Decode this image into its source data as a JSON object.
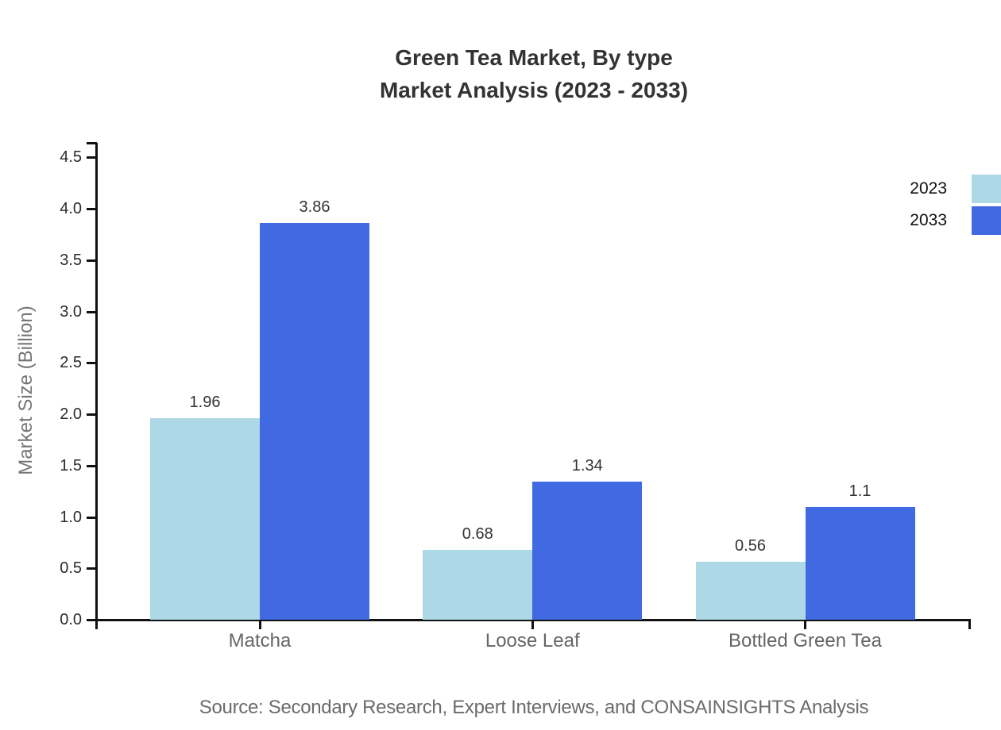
{
  "title": {
    "line1": "Green Tea Market, By type",
    "line2": "Market Analysis (2023 - 2033)"
  },
  "chart_data": {
    "type": "bar",
    "title": "Green Tea Market, By type — Market Analysis (2023 - 2033)",
    "categories": [
      "Matcha",
      "Loose Leaf",
      "Bottled Green Tea"
    ],
    "series": [
      {
        "name": "2023",
        "color": "#ADD8E6",
        "values": [
          1.96,
          0.68,
          0.56
        ]
      },
      {
        "name": "2033",
        "color": "#4169E1",
        "values": [
          3.86,
          1.34,
          1.1
        ]
      }
    ],
    "value_labels": [
      [
        "1.96",
        "0.68",
        "0.56"
      ],
      [
        "3.86",
        "1.34",
        "1.1"
      ]
    ],
    "xlabel": "",
    "ylabel": "Market Size (Billion)",
    "ylim": [
      0,
      4.5
    ],
    "yticks": [
      "0.0",
      "0.5",
      "1.0",
      "1.5",
      "2.0",
      "2.5",
      "3.0",
      "3.5",
      "4.0",
      "4.5"
    ],
    "grid": false,
    "legend_position": "upper-right"
  },
  "source_note": "Source: Secondary Research, Expert Interviews, and CONSAINSIGHTS Analysis",
  "colors": {
    "background": "#ffffff",
    "axis": "#111111",
    "title_text": "#333333",
    "tick_label_text": "#2b2b2b",
    "category_label_text": "#666666",
    "value_label_text": "#333333",
    "y_axis_title_text": "#757575",
    "legend_text": "#111111",
    "source_text": "#6b6b6b",
    "series_2023": "#ADD8E6",
    "series_2033": "#4169E1"
  }
}
